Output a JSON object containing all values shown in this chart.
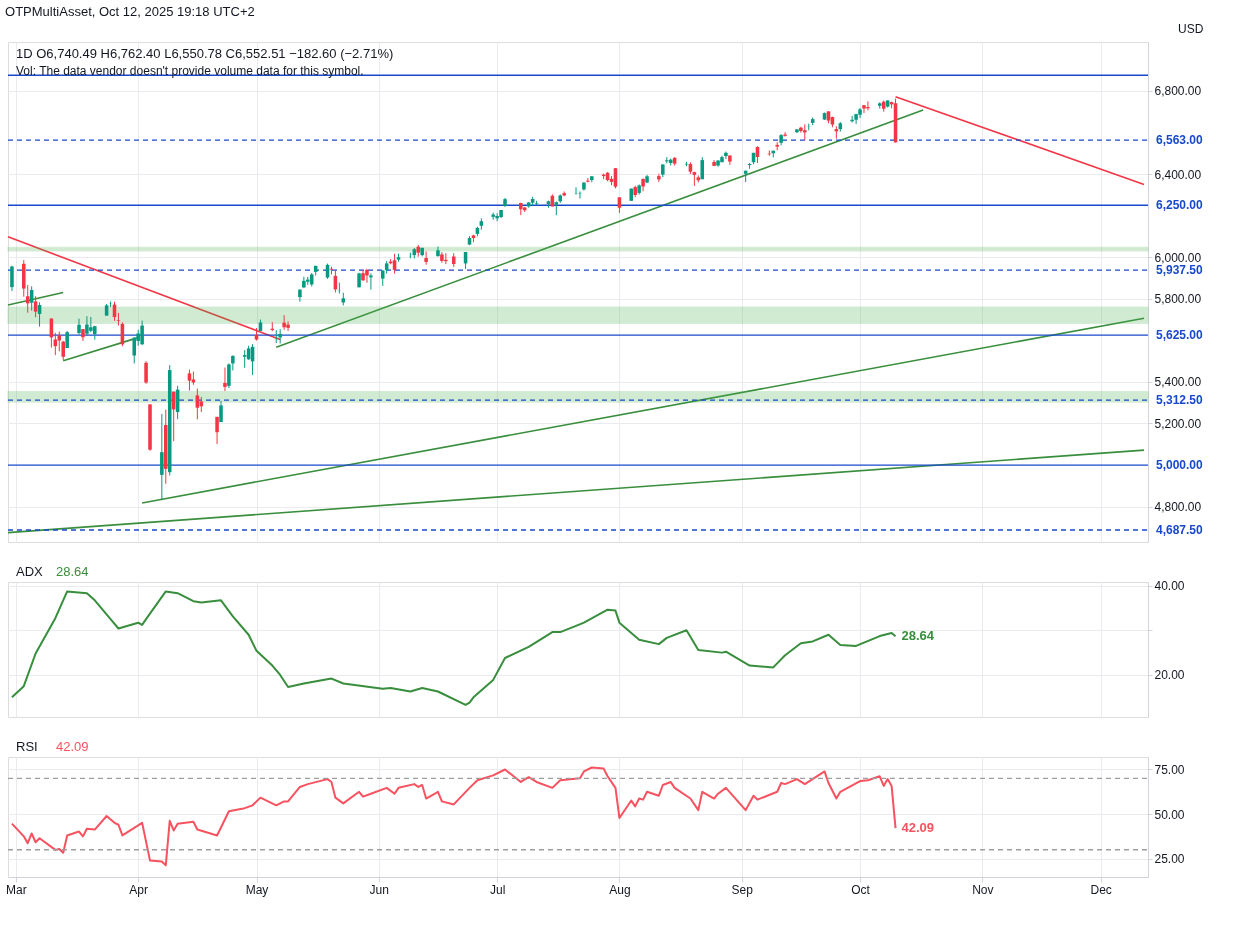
{
  "chart_data": [
    {
      "type": "candlestick",
      "title": "1D  O6,740.49 H6,762.40 L6,550.78 C6,552.51 −182.60 (−2.71%)",
      "annotations": [
        "OTPMultiAsset, Oct 12, 2025 19:18 UTC+2",
        "Vol: The data vendor doesn't provide volume data for this symbol.",
        "USD"
      ],
      "colors": [
        "#089981",
        "#f23645",
        "#f23645",
        "#089981",
        "#f23645",
        "#089981",
        "#f23645",
        "#f23645",
        "#f23645",
        "#f23645",
        "#089981",
        "#089981",
        "#f23645",
        "#089981",
        "#089981",
        "#089981",
        "#089981",
        "#089981",
        "#f23645",
        "#f23645",
        "#f23645",
        "#089981",
        "#089981",
        "#089981",
        "#f23645",
        "#f23645",
        "#089981",
        "#f23645",
        "#089981",
        "#f23645",
        "#089981",
        "#f23645",
        "#f23645",
        "#f23645",
        "#f23645",
        "#f23645",
        "#089981",
        "#f23645",
        "#089981",
        "#089981",
        "#089981",
        "#089981",
        "#089981",
        "#f23645",
        "#089981",
        "#f23645",
        "#089981",
        "#089981",
        "#f23645",
        "#f23645",
        "#089981",
        "#089981",
        "#089981",
        "#089981",
        "#089981",
        "#089981",
        "#f23645",
        "#f23645",
        "#089981",
        "#089981",
        "#089981",
        "#f23645",
        "#f23645",
        "#089981",
        "#089981",
        "#089981",
        "#f23645",
        "#f23645",
        "#089981",
        "#089981",
        "#089981",
        "#f23645",
        "#089981",
        "#f23645",
        "#089981",
        "#f23645",
        "#f23645",
        "#f23645",
        "#089981",
        "#089981",
        "#f23645",
        "#089981",
        "#089981",
        "#089981",
        "#089981",
        "#089981",
        "#089981",
        "#f23645",
        "#f23645",
        "#089981",
        "#089981",
        "#089981",
        "#089981",
        "#f23645",
        "#089981",
        "#089981",
        "#f23645",
        "#089981",
        "#089981",
        "#089981",
        "#f23645",
        "#089981",
        "#f23645",
        "#f23645",
        "#f23645",
        "#f23645",
        "#f23645",
        "#089981",
        "#f23645",
        "#089981",
        "#f23645",
        "#089981",
        "#f23645",
        "#089981",
        "#089981",
        "#089981",
        "#f23645",
        "#089981",
        "#f23645",
        "#f23645",
        "#f23645",
        "#089981",
        "#f23645",
        "#089981",
        "#089981",
        "#089981",
        "#f23645",
        "#089981",
        "#089981",
        "#089981",
        "#f23645",
        "#f23645",
        "#089981",
        "#f23645",
        "#089981",
        "#f23645",
        "#089981",
        "#f23645",
        "#f23645",
        "#089981",
        "#089981",
        "#089981",
        "#f23645",
        "#f23645",
        "#f23645",
        "#089981",
        "#089981",
        "#089981",
        "#089981",
        "#f23645",
        "#f23645",
        "#089981",
        "#f23645",
        "#089981",
        "#f23645",
        "#f23645"
      ],
      "x": [
        "2025-02-28",
        "2025-03-03",
        "2025-03-04",
        "2025-03-05",
        "2025-03-06",
        "2025-03-07",
        "2025-03-10",
        "2025-03-11",
        "2025-03-12",
        "2025-03-13",
        "2025-03-14",
        "2025-03-17",
        "2025-03-18",
        "2025-03-19",
        "2025-03-20",
        "2025-03-21",
        "2025-03-24",
        "2025-03-25",
        "2025-03-26",
        "2025-03-27",
        "2025-03-28",
        "2025-03-31",
        "2025-04-01",
        "2025-04-02",
        "2025-04-03",
        "2025-04-04",
        "2025-04-07",
        "2025-04-08",
        "2025-04-09",
        "2025-04-10",
        "2025-04-11",
        "2025-04-14",
        "2025-04-15",
        "2025-04-16",
        "2025-04-17",
        "2025-04-21",
        "2025-04-22",
        "2025-04-23",
        "2025-04-24",
        "2025-04-25",
        "2025-04-28",
        "2025-04-29",
        "2025-04-30",
        "2025-05-01",
        "2025-05-02",
        "2025-05-05",
        "2025-05-06",
        "2025-05-07",
        "2025-05-08",
        "2025-05-09",
        "2025-05-12",
        "2025-05-13",
        "2025-05-14",
        "2025-05-15",
        "2025-05-16",
        "2025-05-19",
        "2025-05-20",
        "2025-05-21",
        "2025-05-22",
        "2025-05-23",
        "2025-05-27",
        "2025-05-28",
        "2025-05-29",
        "2025-05-30",
        "2025-06-02",
        "2025-06-03",
        "2025-06-04",
        "2025-06-05",
        "2025-06-06",
        "2025-06-09",
        "2025-06-10",
        "2025-06-11",
        "2025-06-12",
        "2025-06-13",
        "2025-06-16",
        "2025-06-17",
        "2025-06-18",
        "2025-06-20",
        "2025-06-23",
        "2025-06-24",
        "2025-06-25",
        "2025-06-26",
        "2025-06-27",
        "2025-06-30",
        "2025-07-01",
        "2025-07-02",
        "2025-07-03",
        "2025-07-07",
        "2025-07-08",
        "2025-07-09",
        "2025-07-10",
        "2025-07-11",
        "2025-07-14",
        "2025-07-15",
        "2025-07-16",
        "2025-07-17",
        "2025-07-18",
        "2025-07-21",
        "2025-07-22",
        "2025-07-23",
        "2025-07-24",
        "2025-07-25",
        "2025-07-28",
        "2025-07-29",
        "2025-07-30",
        "2025-07-31",
        "2025-08-01",
        "2025-08-04",
        "2025-08-05",
        "2025-08-06",
        "2025-08-07",
        "2025-08-08",
        "2025-08-11",
        "2025-08-12",
        "2025-08-13",
        "2025-08-14",
        "2025-08-15",
        "2025-08-18",
        "2025-08-19",
        "2025-08-20",
        "2025-08-21",
        "2025-08-22",
        "2025-08-25",
        "2025-08-26",
        "2025-08-27",
        "2025-08-28",
        "2025-08-29",
        "2025-09-02",
        "2025-09-03",
        "2025-09-04",
        "2025-09-05",
        "2025-09-08",
        "2025-09-09",
        "2025-09-10",
        "2025-09-11",
        "2025-09-12",
        "2025-09-15",
        "2025-09-16",
        "2025-09-17",
        "2025-09-18",
        "2025-09-19",
        "2025-09-22",
        "2025-09-23",
        "2025-09-24",
        "2025-09-25",
        "2025-09-26",
        "2025-09-29",
        "2025-09-30",
        "2025-10-01",
        "2025-10-02",
        "2025-10-03",
        "2025-10-06",
        "2025-10-07",
        "2025-10-08",
        "2025-10-09",
        "2025-10-10"
      ],
      "ohlc": [
        [
          5856,
          5959,
          5837,
          5955
        ],
        [
          5968,
          5986,
          5810,
          5849
        ],
        [
          5812,
          5866,
          5733,
          5778
        ],
        [
          5781,
          5860,
          5743,
          5842
        ],
        [
          5787,
          5812,
          5711,
          5738
        ],
        [
          5727,
          5783,
          5666,
          5770
        ],
        [
          5705,
          5705,
          5565,
          5614
        ],
        [
          5604,
          5636,
          5529,
          5572
        ],
        [
          5624,
          5642,
          5547,
          5599
        ],
        [
          5594,
          5597,
          5505,
          5521
        ],
        [
          5563,
          5645,
          5563,
          5639
        ],
        [
          5635,
          5704,
          5628,
          5675
        ],
        [
          5654,
          5654,
          5597,
          5615
        ],
        [
          5632,
          5716,
          5622,
          5676
        ],
        [
          5646,
          5712,
          5639,
          5663
        ],
        [
          5630,
          5670,
          5603,
          5668
        ],
        [
          5719,
          5775,
          5719,
          5768
        ],
        [
          5776,
          5787,
          5760,
          5777
        ],
        [
          5772,
          5786,
          5694,
          5712
        ],
        [
          5696,
          5732,
          5671,
          5693
        ],
        [
          5679,
          5686,
          5572,
          5581
        ],
        [
          5527,
          5615,
          5489,
          5612
        ],
        [
          5597,
          5651,
          5574,
          5633
        ],
        [
          5581,
          5695,
          5578,
          5671
        ],
        [
          5492,
          5500,
          5391,
          5397
        ],
        [
          5292,
          5292,
          5069,
          5074
        ],
        [
          4953,
          5246,
          4835,
          5062
        ],
        [
          5193,
          5267,
          4910,
          4982
        ],
        [
          4966,
          5481,
          4950,
          5457
        ],
        [
          5353,
          5353,
          5115,
          5268
        ],
        [
          5255,
          5381,
          5221,
          5363
        ],
        [
          5441,
          5459,
          5358,
          5406
        ],
        [
          5412,
          5450,
          5386,
          5397
        ],
        [
          5335,
          5368,
          5220,
          5276
        ],
        [
          5306,
          5328,
          5255,
          5283
        ],
        [
          5232,
          5232,
          5101,
          5158
        ],
        [
          5207,
          5309,
          5207,
          5287
        ],
        [
          5395,
          5469,
          5356,
          5376
        ],
        [
          5381,
          5489,
          5371,
          5484
        ],
        [
          5489,
          5528,
          5455,
          5525
        ],
        [
          5521,
          5553,
          5468,
          5529
        ],
        [
          5509,
          5574,
          5506,
          5561
        ],
        [
          5499,
          5582,
          5434,
          5569
        ],
        [
          5626,
          5659,
          5599,
          5604
        ],
        [
          5645,
          5700,
          5645,
          5686
        ],
        [
          5656,
          5687,
          5644,
          5650
        ],
        [
          5606,
          5649,
          5587,
          5607
        ],
        [
          5614,
          5654,
          5585,
          5631
        ],
        [
          5685,
          5721,
          5651,
          5663
        ],
        [
          5676,
          5691,
          5645,
          5660
        ],
        [
          5808,
          5845,
          5786,
          5844
        ],
        [
          5854,
          5906,
          5854,
          5886
        ],
        [
          5882,
          5906,
          5867,
          5892
        ],
        [
          5869,
          5924,
          5859,
          5917
        ],
        [
          5929,
          5959,
          5912,
          5958
        ],
        [
          5902,
          5969,
          5896,
          5963
        ],
        [
          5944,
          5954,
          5917,
          5940
        ],
        [
          5910,
          5938,
          5830,
          5845
        ],
        [
          5841,
          5878,
          5825,
          5842
        ],
        [
          5782,
          5829,
          5768,
          5802
        ],
        [
          5855,
          5925,
          5855,
          5922
        ],
        [
          5923,
          5939,
          5885,
          5889
        ],
        [
          5939,
          5944,
          5877,
          5912
        ],
        [
          5903,
          5922,
          5844,
          5912
        ],
        [
          5897,
          5937,
          5862,
          5936
        ],
        [
          5938,
          5982,
          5921,
          5970
        ],
        [
          5979,
          5991,
          5966,
          5971
        ],
        [
          5985,
          6016,
          5921,
          5939
        ],
        [
          5988,
          6017,
          5978,
          6000
        ],
        [
          6005,
          6021,
          5995,
          6006
        ],
        [
          6010,
          6044,
          5994,
          6038
        ],
        [
          6050,
          6059,
          6002,
          6022
        ],
        [
          6010,
          6045,
          6004,
          6045
        ],
        [
          5996,
          6027,
          5964,
          5977
        ],
        [
          6005,
          6051,
          6003,
          6033
        ],
        [
          6013,
          6024,
          5974,
          5982
        ],
        [
          5987,
          6019,
          5967,
          5981
        ],
        [
          6003,
          6019,
          5953,
          5967
        ],
        [
          5970,
          6025,
          5943,
          6025
        ],
        [
          6061,
          6101,
          6058,
          6092
        ],
        [
          6105,
          6108,
          6072,
          6092
        ],
        [
          6112,
          6146,
          6100,
          6141
        ],
        [
          6151,
          6187,
          6132,
          6173
        ],
        [
          6194,
          6215,
          6180,
          6205
        ],
        [
          6187,
          6211,
          6173,
          6198
        ],
        [
          6193,
          6227,
          6188,
          6227
        ],
        [
          6246,
          6285,
          6241,
          6279
        ],
        [
          6260,
          6262,
          6202,
          6230
        ],
        [
          6239,
          6242,
          6217,
          6226
        ],
        [
          6244,
          6265,
          6238,
          6263
        ],
        [
          6262,
          6291,
          6248,
          6280
        ],
        [
          6256,
          6271,
          6251,
          6259
        ],
        [
          6255,
          6272,
          6237,
          6269
        ],
        [
          6295,
          6302,
          6244,
          6244
        ],
        [
          6253,
          6268,
          6202,
          6264
        ],
        [
          6269,
          6302,
          6261,
          6297
        ],
        [
          6308,
          6316,
          6293,
          6297
        ],
        [
          6305,
          6336,
          6301,
          6306
        ],
        [
          6307,
          6316,
          6282,
          6309
        ],
        [
          6326,
          6360,
          6320,
          6359
        ],
        [
          6368,
          6381,
          6360,
          6363
        ],
        [
          6371,
          6390,
          6360,
          6389
        ],
        [
          6397,
          6402,
          6375,
          6390
        ],
        [
          6406,
          6409,
          6365,
          6371
        ],
        [
          6377,
          6390,
          6346,
          6362
        ],
        [
          6428,
          6428,
          6331,
          6339
        ],
        [
          6288,
          6288,
          6213,
          6238
        ],
        [
          6271,
          6330,
          6271,
          6330
        ],
        [
          6337,
          6344,
          6289,
          6299
        ],
        [
          6309,
          6350,
          6301,
          6345
        ],
        [
          6376,
          6379,
          6317,
          6340
        ],
        [
          6359,
          6396,
          6356,
          6389
        ],
        [
          6390,
          6401,
          6362,
          6374
        ],
        [
          6397,
          6446,
          6385,
          6446
        ],
        [
          6461,
          6481,
          6451,
          6466
        ],
        [
          6453,
          6474,
          6441,
          6469
        ],
        [
          6478,
          6481,
          6441,
          6450
        ],
        [
          6446,
          6459,
          6437,
          6449
        ],
        [
          6448,
          6456,
          6400,
          6411
        ],
        [
          6409,
          6411,
          6343,
          6396
        ],
        [
          6384,
          6393,
          6360,
          6370
        ],
        [
          6375,
          6481,
          6375,
          6467
        ],
        [
          6458,
          6467,
          6438,
          6439
        ],
        [
          6441,
          6466,
          6435,
          6465
        ],
        [
          6457,
          6488,
          6456,
          6481
        ],
        [
          6486,
          6508,
          6472,
          6502
        ],
        [
          6489,
          6490,
          6444,
          6460
        ],
        [
          6401,
          6416,
          6361,
          6416
        ],
        [
          6443,
          6453,
          6425,
          6448
        ],
        [
          6457,
          6502,
          6447,
          6502
        ],
        [
          6530,
          6533,
          6453,
          6482
        ],
        [
          6498,
          6513,
          6488,
          6495
        ],
        [
          6500,
          6513,
          6480,
          6512
        ],
        [
          6540,
          6553,
          6514,
          6532
        ],
        [
          6550,
          6592,
          6538,
          6587
        ],
        [
          6590,
          6601,
          6580,
          6584
        ],
        [
          6601,
          6616,
          6597,
          6615
        ],
        [
          6623,
          6627,
          6599,
          6607
        ],
        [
          6611,
          6639,
          6563,
          6600
        ],
        [
          6630,
          6642,
          6610,
          6631
        ],
        [
          6646,
          6672,
          6635,
          6664
        ],
        [
          6662,
          6696,
          6660,
          6693
        ],
        [
          6701,
          6703,
          6644,
          6657
        ],
        [
          6674,
          6676,
          6625,
          6638
        ],
        [
          6616,
          6630,
          6570,
          6605
        ],
        [
          6616,
          6650,
          6604,
          6644
        ],
        [
          6654,
          6680,
          6648,
          6661
        ],
        [
          6661,
          6690,
          6641,
          6688
        ],
        [
          6685,
          6718,
          6669,
          6711
        ],
        [
          6731,
          6731,
          6693,
          6715
        ],
        [
          6722,
          6750,
          6706,
          6716
        ],
        [
          6728,
          6745,
          6715,
          6740
        ],
        [
          6748,
          6753,
          6700,
          6714
        ],
        [
          6724,
          6754,
          6720,
          6754
        ],
        [
          6746,
          6748,
          6716,
          6735
        ],
        [
          6740.49,
          6762.4,
          6550.78,
          6552.51
        ]
      ],
      "series": [
        {
          "type": "line",
          "color": "#f23645",
          "x": [
            "2025-02-27",
            "2025-05-07"
          ],
          "values": [
            6098,
            5604
          ]
        },
        {
          "type": "line",
          "color": "#f23645",
          "x": [
            "2025-10-10",
            "2025-12-12"
          ],
          "values": [
            6772,
            6350
          ]
        },
        {
          "type": "line",
          "color": "#388e3c",
          "x": [
            "2025-05-06",
            "2025-10-17"
          ],
          "values": [
            5567,
            6708
          ]
        },
        {
          "type": "line",
          "color": "#388e3c",
          "x": [
            "2025-03-13",
            "2025-04-01"
          ],
          "values": [
            5502,
            5613
          ]
        },
        {
          "type": "line",
          "color": "#388e3c",
          "x": [
            "2025-02-27",
            "2025-03-13"
          ],
          "values": [
            5770,
            5830
          ]
        },
        {
          "type": "line",
          "color": "#388e3c",
          "x": [
            "2025-04-02",
            "2025-12-12"
          ],
          "values": [
            4818,
            5706
          ]
        },
        {
          "type": "line",
          "color": "#388e3c",
          "x": [
            "2025-02-27",
            "2025-12-12"
          ],
          "values": [
            4675,
            5072
          ]
        }
      ],
      "ref_lines": [
        {
          "axis": "y",
          "value": 6875,
          "color": "#1848cc",
          "line_style": "solid"
        },
        {
          "axis": "y",
          "value": 6563,
          "label": "6,563.00",
          "color": "#1848cc",
          "line_style": "dashed"
        },
        {
          "axis": "y",
          "value": 6250,
          "label": "6,250.00",
          "color": "#1848cc",
          "line_style": "solid"
        },
        {
          "axis": "y",
          "value": 5937.5,
          "label": "5,937.50",
          "color": "#1848cc",
          "line_style": "dashed"
        },
        {
          "axis": "y",
          "value": 5625,
          "label": "5,625.00",
          "color": "#1848cc",
          "line_style": "solid"
        },
        {
          "axis": "y",
          "value": 5312.5,
          "label": "5,312.50",
          "color": "#1848cc",
          "line_style": "dashed"
        },
        {
          "axis": "y",
          "value": 5000,
          "label": "5,000.00",
          "color": "#1848cc",
          "line_style": "solid"
        },
        {
          "axis": "y",
          "value": 4687.5,
          "label": "4,687.50",
          "color": "#1848cc",
          "line_style": "dashed"
        }
      ],
      "bands": [
        {
          "axis": "y",
          "from": 6030,
          "to": 6047,
          "color": "#4caf50"
        },
        {
          "axis": "y",
          "from": 5682,
          "to": 5760,
          "color": "#4caf50"
        },
        {
          "axis": "y",
          "from": 5303,
          "to": 5354,
          "color": "#4caf50"
        }
      ],
      "xlim": [
        "2025-02-27",
        "2025-12-13"
      ],
      "xticks": [
        {
          "value": "2025-03-01",
          "label": null
        },
        {
          "value": "2025-04-01",
          "label": null
        },
        {
          "value": "2025-05-01",
          "label": null
        },
        {
          "value": "2025-06-01",
          "label": null
        },
        {
          "value": "2025-07-01",
          "label": null
        },
        {
          "value": "2025-08-01",
          "label": null
        },
        {
          "value": "2025-09-01",
          "label": null
        },
        {
          "value": "2025-10-01",
          "label": null
        },
        {
          "value": "2025-11-01",
          "label": null
        },
        {
          "value": "2025-12-01",
          "label": null
        }
      ],
      "ylim": [
        4630,
        7035
      ],
      "yticks": [
        {
          "value": 4800,
          "label": "4,800.00"
        },
        {
          "value": 5200,
          "label": "5,200.00"
        },
        {
          "value": 5400,
          "label": "5,400.00"
        },
        {
          "value": 5800,
          "label": "5,800.00"
        },
        {
          "value": 6000,
          "label": "6,000.00"
        },
        {
          "value": 6400,
          "label": "6,400.00"
        },
        {
          "value": 6800,
          "label": "6,800.00"
        }
      ],
      "grid": true,
      "tick_labels": "y"
    },
    {
      "type": "line",
      "series": [
        {
          "name": "ADX",
          "color": "#388e3c",
          "x": [
            "2025-02-28",
            "2025-03-03",
            "2025-03-06",
            "2025-03-11",
            "2025-03-14",
            "2025-03-19",
            "2025-03-21",
            "2025-03-25",
            "2025-03-27",
            "2025-04-01",
            "2025-04-02",
            "2025-04-03",
            "2025-04-08",
            "2025-04-11",
            "2025-04-15",
            "2025-04-17",
            "2025-04-22",
            "2025-04-25",
            "2025-04-29",
            "2025-05-01",
            "2025-05-05",
            "2025-05-07",
            "2025-05-09",
            "2025-05-13",
            "2025-05-20",
            "2025-05-23",
            "2025-06-02",
            "2025-06-04",
            "2025-06-09",
            "2025-06-12",
            "2025-06-16",
            "2025-06-23",
            "2025-06-24",
            "2025-06-25",
            "2025-06-30",
            "2025-07-03",
            "2025-07-09",
            "2025-07-15",
            "2025-07-17",
            "2025-07-21",
            "2025-07-23",
            "2025-07-29",
            "2025-07-31",
            "2025-08-01",
            "2025-08-06",
            "2025-08-11",
            "2025-08-13",
            "2025-08-18",
            "2025-08-21",
            "2025-08-27",
            "2025-08-28",
            "2025-09-03",
            "2025-09-09",
            "2025-09-12",
            "2025-09-16",
            "2025-09-19",
            "2025-09-23",
            "2025-09-26",
            "2025-09-30",
            "2025-10-06",
            "2025-10-09",
            "2025-10-10"
          ],
          "values": [
            15.0,
            17.5,
            24.8,
            32.7,
            38.7,
            38.3,
            36.7,
            32.5,
            30.4,
            31.7,
            31.2,
            32.5,
            38.7,
            38.3,
            36.5,
            36.2,
            36.7,
            33.1,
            29.0,
            25.4,
            22.1,
            20.0,
            17.3,
            18.1,
            19.2,
            18.1,
            16.9,
            17.1,
            16.3,
            17.1,
            16.3,
            13.3,
            13.8,
            15.0,
            18.9,
            23.8,
            26.3,
            29.6,
            29.6,
            31.0,
            31.7,
            34.6,
            34.4,
            31.7,
            27.9,
            26.9,
            28.3,
            30.0,
            25.6,
            25.0,
            25.2,
            22.1,
            21.7,
            24.4,
            27.1,
            27.5,
            29.0,
            26.7,
            26.5,
            28.7,
            29.4,
            28.64
          ]
        }
      ],
      "annotations": [
        "28.64",
        {
          "text": "28.64",
          "x": "2025-10-10",
          "y": 28.64
        }
      ],
      "xlim": [
        "2025-02-27",
        "2025-12-13"
      ],
      "xticks": [
        {
          "value": "2025-03-01",
          "label": null
        },
        {
          "value": "2025-04-01",
          "label": null
        },
        {
          "value": "2025-05-01",
          "label": null
        },
        {
          "value": "2025-06-01",
          "label": null
        },
        {
          "value": "2025-07-01",
          "label": null
        },
        {
          "value": "2025-08-01",
          "label": null
        },
        {
          "value": "2025-09-01",
          "label": null
        },
        {
          "value": "2025-10-01",
          "label": null
        },
        {
          "value": "2025-11-01",
          "label": null
        },
        {
          "value": "2025-12-01",
          "label": null
        }
      ],
      "ylim": [
        10.6,
        40.8
      ],
      "yticks": [
        {
          "value": 20,
          "label": "20.00"
        },
        {
          "value": 30,
          "label": null
        },
        {
          "value": 40,
          "label": "40.00"
        }
      ],
      "grid": true,
      "tick_labels": "y"
    },
    {
      "type": "line",
      "series": [
        {
          "name": "RSI",
          "color": "#f7525f",
          "x": [
            "2025-02-28",
            "2025-03-03",
            "2025-03-04",
            "2025-03-05",
            "2025-03-06",
            "2025-03-07",
            "2025-03-11",
            "2025-03-12",
            "2025-03-13",
            "2025-03-14",
            "2025-03-17",
            "2025-03-18",
            "2025-03-19",
            "2025-03-21",
            "2025-03-24",
            "2025-03-26",
            "2025-03-27",
            "2025-03-28",
            "2025-04-02",
            "2025-04-04",
            "2025-04-07",
            "2025-04-08",
            "2025-04-09",
            "2025-04-10",
            "2025-04-11",
            "2025-04-15",
            "2025-04-16",
            "2025-04-21",
            "2025-04-24",
            "2025-04-28",
            "2025-04-30",
            "2025-05-02",
            "2025-05-06",
            "2025-05-08",
            "2025-05-09",
            "2025-05-12",
            "2025-05-14",
            "2025-05-19",
            "2025-05-20",
            "2025-05-21",
            "2025-05-23",
            "2025-05-27",
            "2025-05-28",
            "2025-05-30",
            "2025-06-03",
            "2025-06-05",
            "2025-06-06",
            "2025-06-10",
            "2025-06-11",
            "2025-06-12",
            "2025-06-13",
            "2025-06-16",
            "2025-06-17",
            "2025-06-20",
            "2025-06-24",
            "2025-06-26",
            "2025-06-30",
            "2025-07-03",
            "2025-07-07",
            "2025-07-09",
            "2025-07-11",
            "2025-07-15",
            "2025-07-17",
            "2025-07-22",
            "2025-07-23",
            "2025-07-25",
            "2025-07-28",
            "2025-07-29",
            "2025-07-31",
            "2025-08-01",
            "2025-08-04",
            "2025-08-05",
            "2025-08-06",
            "2025-08-07",
            "2025-08-08",
            "2025-08-11",
            "2025-08-12",
            "2025-08-14",
            "2025-08-15",
            "2025-08-19",
            "2025-08-21",
            "2025-08-22",
            "2025-08-25",
            "2025-08-26",
            "2025-08-28",
            "2025-09-02",
            "2025-09-04",
            "2025-09-05",
            "2025-09-10",
            "2025-09-11",
            "2025-09-12",
            "2025-09-15",
            "2025-09-17",
            "2025-09-22",
            "2025-09-23",
            "2025-09-25",
            "2025-09-26",
            "2025-10-01",
            "2025-10-03",
            "2025-10-06",
            "2025-10-07",
            "2025-10-08",
            "2025-10-09",
            "2025-10-10"
          ],
          "values": [
            44.6,
            37.5,
            33.7,
            39.1,
            34.2,
            36.4,
            29.9,
            30.4,
            28.3,
            38.0,
            40.2,
            37.5,
            41.8,
            41.3,
            48.9,
            45.1,
            44.0,
            38.0,
            45.1,
            23.9,
            23.4,
            21.2,
            46.2,
            40.8,
            44.6,
            45.7,
            41.3,
            38.0,
            51.6,
            53.3,
            54.9,
            59.2,
            54.9,
            57.1,
            57.1,
            65.2,
            66.8,
            69.6,
            68.0,
            59.2,
            56.0,
            62.5,
            59.8,
            61.4,
            64.7,
            61.4,
            64.7,
            66.8,
            65.2,
            66.3,
            58.7,
            62.5,
            57.1,
            55.4,
            64.7,
            69.0,
            71.7,
            75.0,
            68.0,
            70.7,
            68.0,
            64.7,
            69.0,
            70.1,
            73.9,
            76.1,
            75.5,
            71.2,
            64.7,
            47.8,
            57.6,
            54.3,
            58.7,
            58.1,
            62.5,
            60.3,
            66.3,
            68.0,
            64.7,
            58.7,
            52.2,
            62.5,
            58.7,
            61.4,
            64.7,
            52.2,
            60.3,
            58.1,
            62.5,
            67.4,
            66.8,
            69.6,
            66.8,
            73.9,
            67.4,
            58.7,
            62.5,
            68.5,
            69.0,
            71.2,
            65.8,
            69.6,
            65.8,
            42.09
          ]
        }
      ],
      "annotations": [
        "42.09",
        {
          "text": "42.09",
          "x": "2025-10-10",
          "y": 42.09
        }
      ],
      "ref_lines": [
        {
          "axis": "y",
          "value": 70,
          "color": "#9e9e9e",
          "line_style": "dashed"
        },
        {
          "axis": "y",
          "value": 30,
          "color": "#9e9e9e",
          "line_style": "dashed"
        }
      ],
      "xlim": [
        "2025-02-27",
        "2025-12-13"
      ],
      "xticks": [
        {
          "value": "2025-03-01",
          "label": "Mar"
        },
        {
          "value": "2025-04-01",
          "label": "Apr"
        },
        {
          "value": "2025-05-01",
          "label": "May"
        },
        {
          "value": "2025-06-01",
          "label": "Jun"
        },
        {
          "value": "2025-07-01",
          "label": "Jul"
        },
        {
          "value": "2025-08-01",
          "label": "Aug"
        },
        {
          "value": "2025-09-01",
          "label": "Sep"
        },
        {
          "value": "2025-10-01",
          "label": "Oct"
        },
        {
          "value": "2025-11-01",
          "label": "Nov"
        },
        {
          "value": "2025-12-01",
          "label": "Dec"
        }
      ],
      "ylim": [
        14.7,
        82
      ],
      "yticks": [
        {
          "value": 25,
          "label": "25.00"
        },
        {
          "value": 50,
          "label": "50.00"
        },
        {
          "value": 75,
          "label": "75.00"
        }
      ],
      "grid": true
    }
  ]
}
